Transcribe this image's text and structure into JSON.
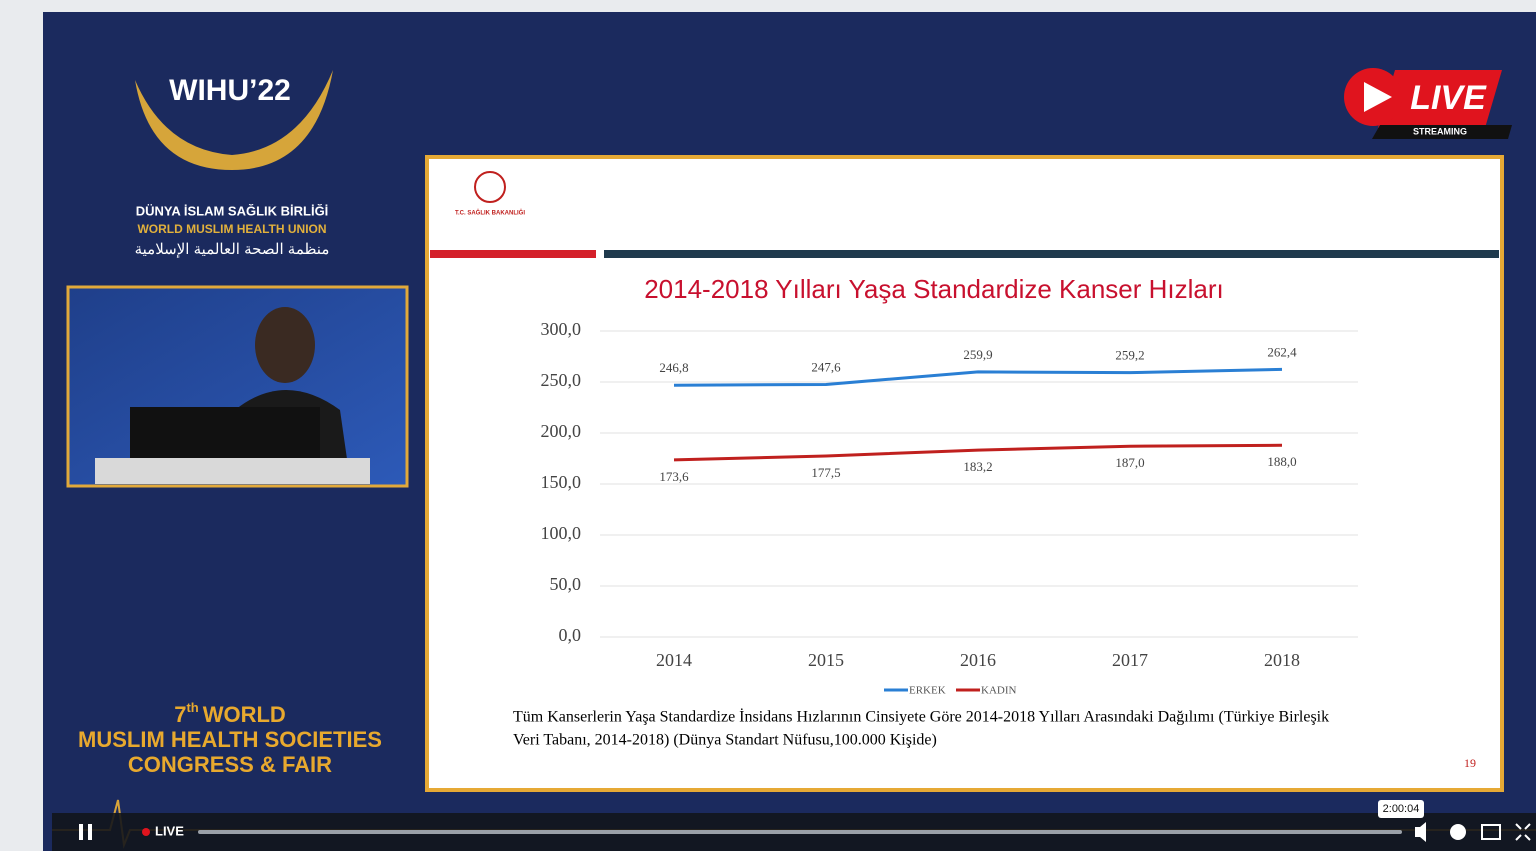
{
  "branding": {
    "event": "WIHU’22",
    "union_tr": "DÜNYA İSLAM SAĞLIK BİRLİĞİ",
    "union_en": "WORLD MUSLIM HEALTH UNION",
    "union_ar": "منظمة الصحة العالمية الإسلامية",
    "congress_num": "7",
    "congress_sup": "th",
    "congress_word": "WORLD",
    "congress_line2": "MUSLIM HEALTH SOCIETIES",
    "congress_line3": "CONGRESS & FAIR"
  },
  "live_badge": {
    "label": "LIVE",
    "sub": "STREAMING"
  },
  "slide": {
    "ministry": "T.C. SAĞLIK BAKANLIĞI",
    "caption_line1": "Tüm Kanserlerin Yaşa Standardize İnsidans Hızlarının Cinsiyete Göre 2014-2018 Yılları Arasındaki Dağılımı (Türkiye Birleşik",
    "caption_line2": "Veri Tabanı, 2014-2018) (Dünya Standart Nüfusu,100.000 Kişide)",
    "page": "19"
  },
  "player": {
    "live": "LIVE",
    "time": "2:00:04"
  },
  "chart_data": {
    "type": "line",
    "title": "2014-2018 Yılları Yaşa Standardize Kanser Hızları",
    "categories": [
      "2014",
      "2015",
      "2016",
      "2017",
      "2018"
    ],
    "series": [
      {
        "name": "ERKEK",
        "color": "#2a7fd4",
        "values": [
          246.8,
          247.6,
          259.9,
          259.2,
          262.4
        ],
        "value_labels": [
          "246,8",
          "247,6",
          "259,9",
          "259,2",
          "262,4"
        ]
      },
      {
        "name": "KADIN",
        "color": "#c0201e",
        "values": [
          173.6,
          177.5,
          183.2,
          187.0,
          188.0
        ],
        "value_labels": [
          "173,6",
          "177,5",
          "183,2",
          "187,0",
          "188,0"
        ]
      }
    ],
    "ylim": [
      0,
      300
    ],
    "yticks": [
      {
        "value": 0,
        "label": "0,0"
      },
      {
        "value": 50,
        "label": "50,0"
      },
      {
        "value": 100,
        "label": "100,0"
      },
      {
        "value": 150,
        "label": "150,0"
      },
      {
        "value": 200,
        "label": "200,0"
      },
      {
        "value": 250,
        "label": "250,0"
      },
      {
        "value": 300,
        "label": "300,0"
      }
    ],
    "grid": true,
    "legend": "bottom"
  }
}
